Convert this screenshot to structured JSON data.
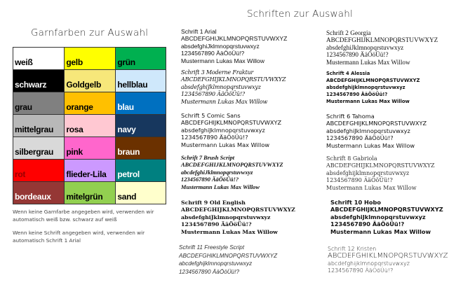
{
  "left_title": "Garnfarben  zur Auswahl",
  "right_title": "Schriften  zur Auswahl",
  "colors": [
    [
      {
        "label": "weiß",
        "bg": "#ffffff",
        "fg": "#000000"
      },
      {
        "label": "gelb",
        "bg": "#ffff00",
        "fg": "#000000"
      },
      {
        "label": "grün",
        "bg": "#00b050",
        "fg": "#000000"
      }
    ],
    [
      {
        "label": "schwarz",
        "bg": "#000000",
        "fg": "#ffffff"
      },
      {
        "label": "Goldgelb",
        "bg": "#f7e77a",
        "fg": "#000000"
      },
      {
        "label": "hellblau",
        "bg": "#cfe8fb",
        "fg": "#000000"
      }
    ],
    [
      {
        "label": "grau",
        "bg": "#808080",
        "fg": "#000000"
      },
      {
        "label": "orange",
        "bg": "#ffc000",
        "fg": "#000000"
      },
      {
        "label": "blau",
        "bg": "#0070c0",
        "fg": "#ffffff"
      }
    ],
    [
      {
        "label": "mittelgrau",
        "bg": "#b8b8b8",
        "fg": "#000000"
      },
      {
        "label": "rosa",
        "bg": "#ffc8d2",
        "fg": "#000000"
      },
      {
        "label": "navy",
        "bg": "#17375e",
        "fg": "#ffffff"
      }
    ],
    [
      {
        "label": "silbergrau",
        "bg": "#d9d9d9",
        "fg": "#000000"
      },
      {
        "label": "pink",
        "bg": "#ff66cc",
        "fg": "#000000"
      },
      {
        "label": "braun",
        "bg": "#6b3100",
        "fg": "#ffffff"
      }
    ],
    [
      {
        "label": "rot",
        "bg": "#ff0000",
        "fg": "#990000"
      },
      {
        "label": "flieder-Lila",
        "bg": "#cc99ff",
        "fg": "#000000"
      },
      {
        "label": "petrol",
        "bg": "#008080",
        "fg": "#ffffff"
      }
    ],
    [
      {
        "label": "bordeaux",
        "bg": "#953735",
        "fg": "#ffffff"
      },
      {
        "label": "mitelgrün",
        "bg": "#92d050",
        "fg": "#000000"
      },
      {
        "label": "sand",
        "bg": "#ffffcc",
        "fg": "#000000"
      }
    ]
  ],
  "notes": [
    "Wenn keine Garnfarbe angegeben wird, verwenden wir automatisch weiß bzw. schwarz auf weiß",
    "Wenn keine Schrift angegeben wird, verwenden wir automatisch Schrift 1 Arial"
  ],
  "fonts": [
    {
      "title": "Schrift  1 Arial",
      "lines": [
        "ABCDEFGHIJKLMNOPQRSTUVWXYZ",
        "absdefghiJklmnopqrstuvwxyz",
        "1234567890 ÄäÖöÜü!?",
        "Mustermann Lukas Max Willow"
      ]
    },
    {
      "title": "Schrift  2 Georgia",
      "lines": [
        "ABCDEFGHIJKLMNOPQRSTUVWXYZ",
        "absdefghiJklmnopqrstuvwxyz",
        "1234567890 ÄäÖöÜü!?",
        "Mustermann Lukas Max Willow"
      ]
    },
    {
      "title": "Schrift  3 Moderne Fraktur",
      "lines": [
        "ABCDEFGHIJKLMNOPQRSTUVWXYZ",
        "absdefghiJklmnopqrstuvwxyz",
        "1234567890 ÄäÖöÜü!?",
        "Mustermann Lukas Max Willow"
      ]
    },
    {
      "title": "Schrift  4 Alessia",
      "lines": [
        "ABCDEFGHIJKLMNOPQRSTUVWXYZ",
        "absdefghiJklmnopqrstuvwxyz",
        "1234567890 ÄäÖöÜü!?",
        "Mustermann Lukas Max Willow"
      ]
    },
    {
      "title": "Schrift  5 Comic Sans",
      "lines": [
        "ABCDEFGHIJKLMNOPQRSTUVWXYZ",
        "absdefghiJklmnopqrstuvwxyz",
        "1234567890 ÄäÖöÜü!?",
        "Mustermann Lukas Max Willow"
      ]
    },
    {
      "title": "Schrift  6 Tahoma",
      "lines": [
        "ABCDEFGHIJKLMNOPQRSTUVWXYZ",
        "absdefghiJklmnopqrstuvwxyz",
        "1234567890 ÄäÖöÜü!?",
        "Mustermann Lukas Max Willow"
      ]
    },
    {
      "title": "Schrift  7 Brush Script",
      "lines": [
        "ABCDEFGHIJKLMNOPQRSTUVWXYZ",
        "abcdefghiJklmnopqrstuvwxyz",
        "1234567890 ÄäÖöÜü!?",
        "Mustermann Lukas Max Willow"
      ]
    },
    {
      "title": "Schrift  8 Gabriola",
      "lines": [
        "ABCDEFGHIJKLMNOPQRSTUVWXYZ",
        "absdefghijklmnopqrstuvwxyz",
        "1234567890 ÄäÖöÜü!?",
        "Mustermann Lukas Max Willow"
      ]
    },
    {
      "title": "Schrift  9 Old English",
      "lines": [
        "ABCDEFGHIJKLMNOPQRSTUVWXYZ",
        "absdefghiJklmnopqrstuvwxyz",
        "1234567890 ÄäÖöÜü!?",
        "Mustermann Lukas Max Willow"
      ]
    },
    {
      "title": "Schrift  10 Hobo",
      "lines": [
        "ABCDEFGHIJKLMNOPQRSTUVWXYZ",
        "absdefghiJklmnopqrstuvwxyz",
        "1234567890 ÄäÖöÜü!?",
        "Mustermann Lukas Max Willow"
      ]
    },
    {
      "title": "Schrift  11  Freestyle Script",
      "lines": [
        "ABCDEFGHIKLMNOPQRSTUVWXYZ",
        "abcdefghijklmnopqrstuvwxyz",
        "1234567890 ÄäÖöÜü!?"
      ]
    },
    {
      "title": "Schrift 12  Kristen",
      "lines": [
        "ABCDEFGHIKLMNOPQRSTUVWXYZ",
        "abcdefghijklmnopqrstuvwxyz",
        "1234567890 ÄäÖöÜü!?"
      ]
    }
  ]
}
